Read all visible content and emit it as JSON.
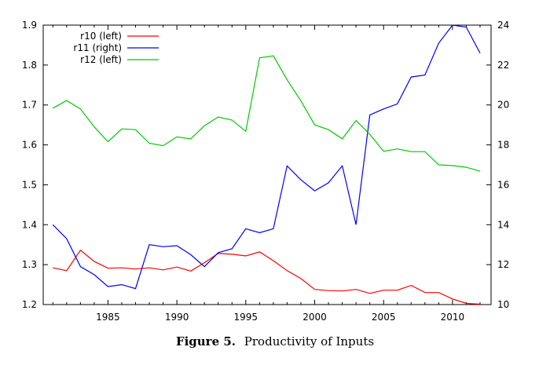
{
  "caption": {
    "label": "Figure 5.",
    "text": "Productivity of Inputs"
  },
  "chart_data": {
    "type": "line",
    "x": [
      1981,
      1982,
      1983,
      1984,
      1985,
      1986,
      1987,
      1988,
      1989,
      1990,
      1991,
      1992,
      1993,
      1994,
      1995,
      1996,
      1997,
      1998,
      1999,
      2000,
      2001,
      2002,
      2003,
      2004,
      2005,
      2006,
      2007,
      2008,
      2009,
      2010,
      2011,
      2012
    ],
    "xlim": [
      1980.3,
      2012.8
    ],
    "xticks": [
      1985,
      1990,
      1995,
      2000,
      2005,
      2010
    ],
    "ylim_left": [
      1.2,
      1.9
    ],
    "yticks_left": [
      "1.2",
      "1.3",
      "1.4",
      "1.5",
      "1.6",
      "1.7",
      "1.8",
      "1.9"
    ],
    "ylim_right": [
      10,
      24
    ],
    "yticks_right": [
      "10",
      "12",
      "14",
      "16",
      "18",
      "20",
      "22",
      "24"
    ],
    "legend_position": "top-left",
    "grid": false,
    "series": [
      {
        "name": "r10 (left)",
        "axis": "left",
        "color": "#ff0000",
        "values": [
          1.292,
          1.285,
          1.336,
          1.308,
          1.291,
          1.292,
          1.289,
          1.292,
          1.287,
          1.294,
          1.284,
          1.305,
          1.328,
          1.326,
          1.322,
          1.332,
          1.31,
          1.285,
          1.265,
          1.238,
          1.235,
          1.234,
          1.238,
          1.228,
          1.236,
          1.236,
          1.248,
          1.23,
          1.23,
          1.214,
          1.203,
          1.201
        ]
      },
      {
        "name": "r11 (right)",
        "axis": "right",
        "color": "#0000ff",
        "values": [
          14.0,
          13.3,
          11.9,
          11.5,
          10.9,
          11.0,
          10.8,
          13.0,
          12.9,
          12.95,
          12.5,
          11.9,
          12.6,
          12.8,
          13.8,
          13.6,
          13.8,
          16.95,
          16.25,
          15.7,
          16.1,
          16.95,
          14.0,
          19.5,
          19.8,
          20.05,
          21.4,
          21.5,
          23.1,
          24.0,
          23.9,
          22.6
        ]
      },
      {
        "name": "r12 (left)",
        "axis": "left",
        "color": "#00cc00",
        "values": [
          1.692,
          1.711,
          1.69,
          1.645,
          1.608,
          1.64,
          1.638,
          1.604,
          1.598,
          1.62,
          1.615,
          1.648,
          1.67,
          1.662,
          1.634,
          1.818,
          1.823,
          1.763,
          1.71,
          1.65,
          1.638,
          1.615,
          1.661,
          1.626,
          1.584,
          1.59,
          1.583,
          1.583,
          1.55,
          1.548,
          1.544,
          1.534
        ]
      }
    ]
  }
}
